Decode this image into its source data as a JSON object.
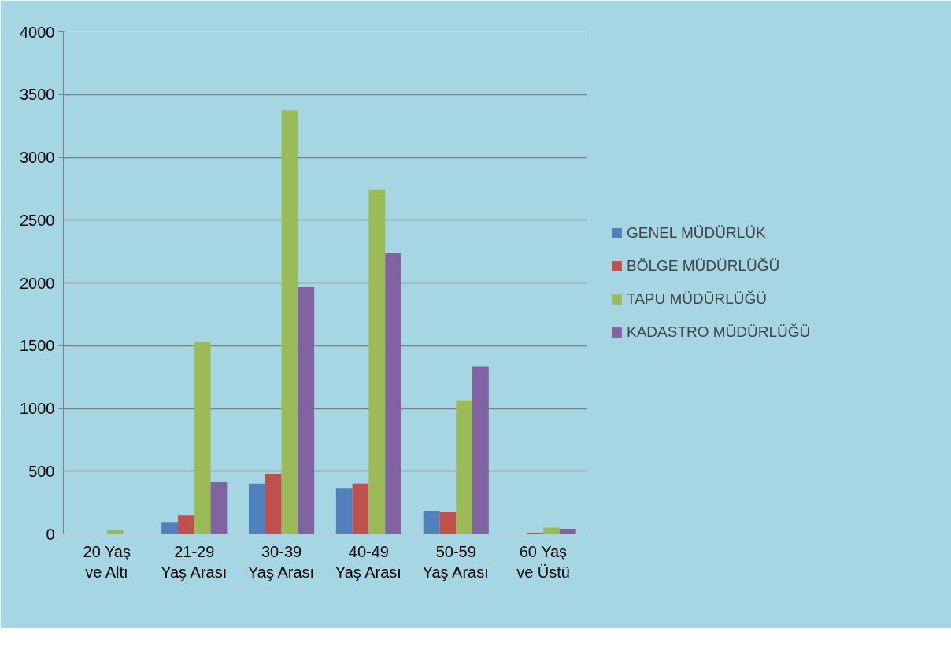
{
  "chart_data": {
    "type": "bar",
    "categories": [
      "20 Yaş\nve Altı",
      "21-29\nYaş Arası",
      "30-39\nYaş Arası",
      "40-49\nYaş Arası",
      "50-59\nYaş Arası",
      "60 Yaş\nve Üstü"
    ],
    "series": [
      {
        "name": "GENEL MÜDÜRLÜK",
        "color": "#4f81bd",
        "values": [
          0,
          95,
          400,
          365,
          185,
          0
        ]
      },
      {
        "name": "BÖLGE MÜDÜRLÜĞÜ",
        "color": "#c0504d",
        "values": [
          0,
          145,
          480,
          400,
          175,
          10
        ]
      },
      {
        "name": "TAPU MÜDÜRLÜĞÜ",
        "color": "#9bbb59",
        "values": [
          30,
          1530,
          3375,
          2745,
          1065,
          50
        ]
      },
      {
        "name": "KADASTRO MÜDÜRLÜĞÜ",
        "color": "#8064a2",
        "values": [
          0,
          410,
          1965,
          2235,
          1335,
          40
        ]
      }
    ],
    "ylim": [
      0,
      4000
    ],
    "yticks": [
      0,
      500,
      1000,
      1500,
      2000,
      2500,
      3000,
      3500,
      4000
    ],
    "grid": "y",
    "legend": "right"
  }
}
